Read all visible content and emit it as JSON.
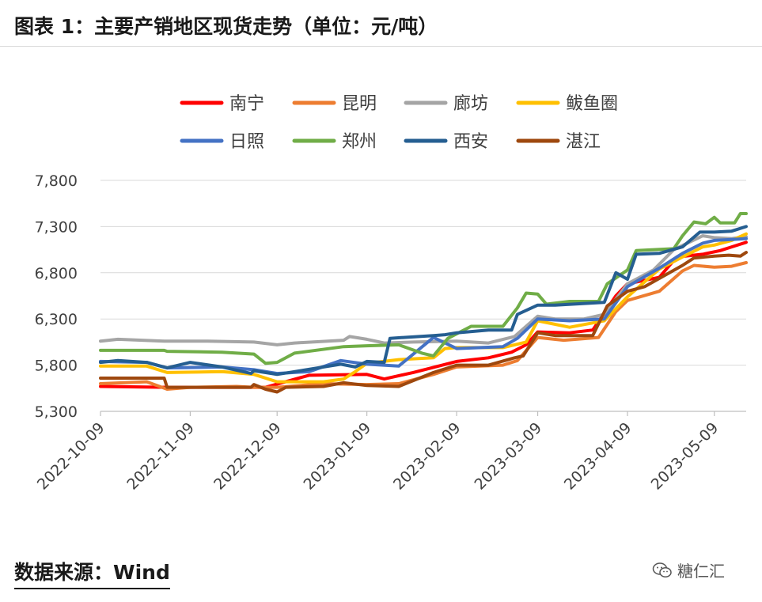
{
  "header": {
    "title": "图表 1：主要产销地区现货走势（单位：元/吨）"
  },
  "footer": {
    "source": "数据来源：Wind",
    "watermark": "糖仁汇"
  },
  "chart_data": {
    "type": "line",
    "title": "图表 1：主要产销地区现货走势（单位：元/吨）",
    "xlabel": "",
    "ylabel": "",
    "ylim": [
      5300,
      7800
    ],
    "yticks": [
      5300,
      5800,
      6300,
      6800,
      7300,
      7800
    ],
    "ytick_labels": [
      "5,300",
      "5,800",
      "6,300",
      "6,800",
      "7,300",
      "7,800"
    ],
    "xlim": [
      "2022-10-09",
      "2023-05-20"
    ],
    "xticks": [
      "2022-10-09",
      "2022-11-09",
      "2022-12-09",
      "2023-01-09",
      "2023-02-09",
      "2023-03-09",
      "2023-04-09",
      "2023-05-09"
    ],
    "grid": "horizontal",
    "legend": "top-center",
    "series": [
      {
        "name": "南宁",
        "color": "#ff0000",
        "values": [
          [
            "2022-10-09",
            5570
          ],
          [
            "2022-11-01",
            5560
          ],
          [
            "2022-11-20",
            5560
          ],
          [
            "2022-12-05",
            5560
          ],
          [
            "2022-12-20",
            5690
          ],
          [
            "2023-01-09",
            5700
          ],
          [
            "2023-01-15",
            5650
          ],
          [
            "2023-01-25",
            5720
          ],
          [
            "2023-02-09",
            5840
          ],
          [
            "2023-02-20",
            5880
          ],
          [
            "2023-02-28",
            5940
          ],
          [
            "2023-03-05",
            6020
          ],
          [
            "2023-03-09",
            6160
          ],
          [
            "2023-03-20",
            6150
          ],
          [
            "2023-03-28",
            6180
          ],
          [
            "2023-04-05",
            6550
          ],
          [
            "2023-04-09",
            6680
          ],
          [
            "2023-04-20",
            6750
          ],
          [
            "2023-04-26",
            6970
          ],
          [
            "2023-05-05",
            7000
          ],
          [
            "2023-05-11",
            7040
          ],
          [
            "2023-05-15",
            7080
          ],
          [
            "2023-05-20",
            7130
          ]
        ]
      },
      {
        "name": "昆明",
        "color": "#ed7d31",
        "values": [
          [
            "2022-10-09",
            5600
          ],
          [
            "2022-10-25",
            5620
          ],
          [
            "2022-11-01",
            5540
          ],
          [
            "2022-11-09",
            5560
          ],
          [
            "2022-11-25",
            5570
          ],
          [
            "2022-12-01",
            5560
          ],
          [
            "2022-12-09",
            5560
          ],
          [
            "2022-12-25",
            5600
          ],
          [
            "2023-01-09",
            5590
          ],
          [
            "2023-01-20",
            5600
          ],
          [
            "2023-02-01",
            5700
          ],
          [
            "2023-02-09",
            5780
          ],
          [
            "2023-02-25",
            5800
          ],
          [
            "2023-03-02",
            5850
          ],
          [
            "2023-03-09",
            6100
          ],
          [
            "2023-03-18",
            6070
          ],
          [
            "2023-03-30",
            6100
          ],
          [
            "2023-04-05",
            6380
          ],
          [
            "2023-04-09",
            6500
          ],
          [
            "2023-04-20",
            6600
          ],
          [
            "2023-04-28",
            6820
          ],
          [
            "2023-05-02",
            6880
          ],
          [
            "2023-05-09",
            6860
          ],
          [
            "2023-05-15",
            6870
          ],
          [
            "2023-05-20",
            6910
          ]
        ]
      },
      {
        "name": "廊坊",
        "color": "#a5a5a5",
        "values": [
          [
            "2022-10-09",
            6060
          ],
          [
            "2022-10-15",
            6080
          ],
          [
            "2022-10-31",
            6060
          ],
          [
            "2022-11-15",
            6060
          ],
          [
            "2022-12-01",
            6050
          ],
          [
            "2022-12-09",
            6020
          ],
          [
            "2022-12-15",
            6040
          ],
          [
            "2023-01-01",
            6070
          ],
          [
            "2023-01-03",
            6110
          ],
          [
            "2023-01-09",
            6080
          ],
          [
            "2023-01-15",
            6040
          ],
          [
            "2023-01-25",
            6050
          ],
          [
            "2023-02-09",
            6060
          ],
          [
            "2023-02-20",
            6040
          ],
          [
            "2023-03-01",
            6110
          ],
          [
            "2023-03-05",
            6220
          ],
          [
            "2023-03-09",
            6330
          ],
          [
            "2023-03-15",
            6300
          ],
          [
            "2023-03-25",
            6300
          ],
          [
            "2023-04-01",
            6350
          ],
          [
            "2023-04-09",
            6680
          ],
          [
            "2023-04-18",
            6830
          ],
          [
            "2023-04-25",
            7050
          ],
          [
            "2023-05-05",
            7200
          ],
          [
            "2023-05-09",
            7180
          ],
          [
            "2023-05-15",
            7170
          ],
          [
            "2023-05-20",
            7190
          ]
        ]
      },
      {
        "name": "鲅鱼圈",
        "color": "#ffc000",
        "values": [
          [
            "2022-10-09",
            5790
          ],
          [
            "2022-10-25",
            5790
          ],
          [
            "2022-11-01",
            5720
          ],
          [
            "2022-11-20",
            5730
          ],
          [
            "2022-12-01",
            5700
          ],
          [
            "2022-12-09",
            5620
          ],
          [
            "2022-12-25",
            5620
          ],
          [
            "2023-01-01",
            5650
          ],
          [
            "2023-01-05",
            5730
          ],
          [
            "2023-01-09",
            5820
          ],
          [
            "2023-01-20",
            5860
          ],
          [
            "2023-02-01",
            5880
          ],
          [
            "2023-02-05",
            5980
          ],
          [
            "2023-02-09",
            5990
          ],
          [
            "2023-02-25",
            5990
          ],
          [
            "2023-03-05",
            6050
          ],
          [
            "2023-03-09",
            6280
          ],
          [
            "2023-03-20",
            6210
          ],
          [
            "2023-04-01",
            6280
          ],
          [
            "2023-04-09",
            6540
          ],
          [
            "2023-04-20",
            6840
          ],
          [
            "2023-04-28",
            6970
          ],
          [
            "2023-05-05",
            7080
          ],
          [
            "2023-05-09",
            7100
          ],
          [
            "2023-05-15",
            7150
          ],
          [
            "2023-05-20",
            7220
          ]
        ]
      },
      {
        "name": "日照",
        "color": "#4472c4",
        "values": [
          [
            "2022-10-09",
            5840
          ],
          [
            "2022-10-25",
            5830
          ],
          [
            "2022-11-01",
            5770
          ],
          [
            "2022-11-20",
            5780
          ],
          [
            "2022-12-01",
            5750
          ],
          [
            "2022-12-09",
            5710
          ],
          [
            "2022-12-20",
            5730
          ],
          [
            "2022-12-31",
            5850
          ],
          [
            "2023-01-09",
            5810
          ],
          [
            "2023-01-20",
            5790
          ],
          [
            "2023-02-01",
            6100
          ],
          [
            "2023-02-09",
            5980
          ],
          [
            "2023-02-25",
            6000
          ],
          [
            "2023-03-02",
            6090
          ],
          [
            "2023-03-09",
            6300
          ],
          [
            "2023-03-20",
            6280
          ],
          [
            "2023-04-01",
            6300
          ],
          [
            "2023-04-09",
            6650
          ],
          [
            "2023-04-20",
            6850
          ],
          [
            "2023-04-28",
            7010
          ],
          [
            "2023-05-05",
            7120
          ],
          [
            "2023-05-09",
            7150
          ],
          [
            "2023-05-15",
            7160
          ],
          [
            "2023-05-20",
            7170
          ]
        ]
      },
      {
        "name": "郑州",
        "color": "#70ad47",
        "values": [
          [
            "2022-10-09",
            5960
          ],
          [
            "2022-10-31",
            5960
          ],
          [
            "2022-11-01",
            5950
          ],
          [
            "2022-11-20",
            5940
          ],
          [
            "2022-12-01",
            5920
          ],
          [
            "2022-12-05",
            5820
          ],
          [
            "2022-12-09",
            5830
          ],
          [
            "2022-12-15",
            5930
          ],
          [
            "2023-01-01",
            6000
          ],
          [
            "2023-01-09",
            6010
          ],
          [
            "2023-01-20",
            6020
          ],
          [
            "2023-01-28",
            5930
          ],
          [
            "2023-02-01",
            5900
          ],
          [
            "2023-02-06",
            6090
          ],
          [
            "2023-02-14",
            6220
          ],
          [
            "2023-02-25",
            6220
          ],
          [
            "2023-03-02",
            6420
          ],
          [
            "2023-03-05",
            6580
          ],
          [
            "2023-03-09",
            6570
          ],
          [
            "2023-03-12",
            6460
          ],
          [
            "2023-03-20",
            6490
          ],
          [
            "2023-03-30",
            6490
          ],
          [
            "2023-04-02",
            6680
          ],
          [
            "2023-04-09",
            6830
          ],
          [
            "2023-04-12",
            7040
          ],
          [
            "2023-04-25",
            7060
          ],
          [
            "2023-04-28",
            7200
          ],
          [
            "2023-05-02",
            7350
          ],
          [
            "2023-05-06",
            7330
          ],
          [
            "2023-05-09",
            7400
          ],
          [
            "2023-05-11",
            7340
          ],
          [
            "2023-05-16",
            7340
          ],
          [
            "2023-05-18",
            7440
          ],
          [
            "2023-05-20",
            7440
          ]
        ]
      },
      {
        "name": "西安",
        "color": "#255e91",
        "values": [
          [
            "2022-10-09",
            5830
          ],
          [
            "2022-10-15",
            5850
          ],
          [
            "2022-10-25",
            5830
          ],
          [
            "2022-11-01",
            5770
          ],
          [
            "2022-11-09",
            5830
          ],
          [
            "2022-11-20",
            5780
          ],
          [
            "2022-11-30",
            5710
          ],
          [
            "2022-12-01",
            5740
          ],
          [
            "2022-12-09",
            5700
          ],
          [
            "2022-12-15",
            5730
          ],
          [
            "2022-12-31",
            5810
          ],
          [
            "2023-01-05",
            5780
          ],
          [
            "2023-01-09",
            5840
          ],
          [
            "2023-01-15",
            5830
          ],
          [
            "2023-01-17",
            6090
          ],
          [
            "2023-02-01",
            6120
          ],
          [
            "2023-02-05",
            6130
          ],
          [
            "2023-02-09",
            6150
          ],
          [
            "2023-02-20",
            6180
          ],
          [
            "2023-02-28",
            6180
          ],
          [
            "2023-03-02",
            6350
          ],
          [
            "2023-03-09",
            6450
          ],
          [
            "2023-03-15",
            6450
          ],
          [
            "2023-04-01",
            6480
          ],
          [
            "2023-04-05",
            6800
          ],
          [
            "2023-04-09",
            6730
          ],
          [
            "2023-04-12",
            7000
          ],
          [
            "2023-04-20",
            7010
          ],
          [
            "2023-04-28",
            7080
          ],
          [
            "2023-05-04",
            7240
          ],
          [
            "2023-05-09",
            7240
          ],
          [
            "2023-05-15",
            7250
          ],
          [
            "2023-05-20",
            7300
          ]
        ]
      },
      {
        "name": "湛江",
        "color": "#9e480e",
        "values": [
          [
            "2022-10-09",
            5660
          ],
          [
            "2022-10-31",
            5660
          ],
          [
            "2022-11-01",
            5560
          ],
          [
            "2022-11-15",
            5560
          ],
          [
            "2022-11-30",
            5560
          ],
          [
            "2022-12-01",
            5590
          ],
          [
            "2022-12-05",
            5540
          ],
          [
            "2022-12-09",
            5510
          ],
          [
            "2022-12-12",
            5560
          ],
          [
            "2022-12-25",
            5570
          ],
          [
            "2023-01-01",
            5610
          ],
          [
            "2023-01-09",
            5580
          ],
          [
            "2023-01-20",
            5570
          ],
          [
            "2023-02-01",
            5720
          ],
          [
            "2023-02-09",
            5800
          ],
          [
            "2023-02-20",
            5800
          ],
          [
            "2023-03-01",
            5880
          ],
          [
            "2023-03-04",
            5900
          ],
          [
            "2023-03-09",
            6150
          ],
          [
            "2023-03-15",
            6120
          ],
          [
            "2023-03-28",
            6120
          ],
          [
            "2023-04-02",
            6440
          ],
          [
            "2023-04-09",
            6600
          ],
          [
            "2023-04-15",
            6650
          ],
          [
            "2023-04-28",
            6880
          ],
          [
            "2023-05-02",
            6960
          ],
          [
            "2023-05-09",
            6980
          ],
          [
            "2023-05-14",
            6990
          ],
          [
            "2023-05-18",
            6980
          ],
          [
            "2023-05-20",
            7020
          ]
        ]
      }
    ]
  }
}
